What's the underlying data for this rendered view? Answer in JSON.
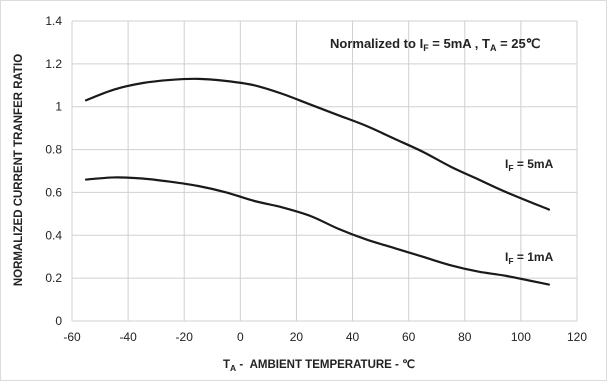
{
  "chart_data": {
    "type": "line",
    "title": "",
    "annotation": {
      "prefix": "Normalized to I",
      "sub1": "F",
      "mid": " = 5mA , T",
      "sub2": "A",
      "suffix": " = 25℃"
    },
    "xlabel": {
      "prefix": "T",
      "sub": "A",
      "suffix": " -  AMBIENT TEMPERATURE - ℃"
    },
    "ylabel": "NORMALIZED CURRENT TRANFER RATIO",
    "xlim": [
      -60,
      120
    ],
    "ylim": [
      0,
      1.4
    ],
    "x_ticks": [
      -60,
      -40,
      -20,
      0,
      20,
      40,
      60,
      80,
      100,
      120
    ],
    "x_tick_labels": [
      "-60",
      "-40",
      "-20",
      "0",
      "20",
      "40",
      "60",
      "80",
      "100",
      "120"
    ],
    "y_ticks": [
      0,
      0.2,
      0.4,
      0.6,
      0.8,
      1.0,
      1.2,
      1.4
    ],
    "y_tick_labels": [
      "0",
      "0.2",
      "0.4",
      "0.6",
      "0.8",
      "1",
      "1.2",
      "1.4"
    ],
    "grid": true,
    "series": [
      {
        "label_prefix": "I",
        "label_sub": "F",
        "label_suffix": " = 5mA",
        "color": "#1a1a1a",
        "x": [
          -55,
          -45,
          -35,
          -25,
          -15,
          -5,
          5,
          15,
          25,
          35,
          45,
          55,
          65,
          75,
          85,
          95,
          110
        ],
        "y": [
          1.03,
          1.08,
          1.11,
          1.125,
          1.13,
          1.12,
          1.1,
          1.06,
          1.01,
          0.96,
          0.91,
          0.85,
          0.79,
          0.72,
          0.66,
          0.6,
          0.52
        ]
      },
      {
        "label_prefix": "I",
        "label_sub": "F",
        "label_suffix": " = 1mA",
        "color": "#1a1a1a",
        "x": [
          -55,
          -45,
          -35,
          -25,
          -15,
          -5,
          5,
          15,
          25,
          35,
          45,
          55,
          65,
          75,
          85,
          95,
          110
        ],
        "y": [
          0.66,
          0.67,
          0.665,
          0.65,
          0.63,
          0.6,
          0.56,
          0.53,
          0.49,
          0.43,
          0.38,
          0.34,
          0.3,
          0.26,
          0.23,
          0.21,
          0.17
        ]
      }
    ]
  }
}
